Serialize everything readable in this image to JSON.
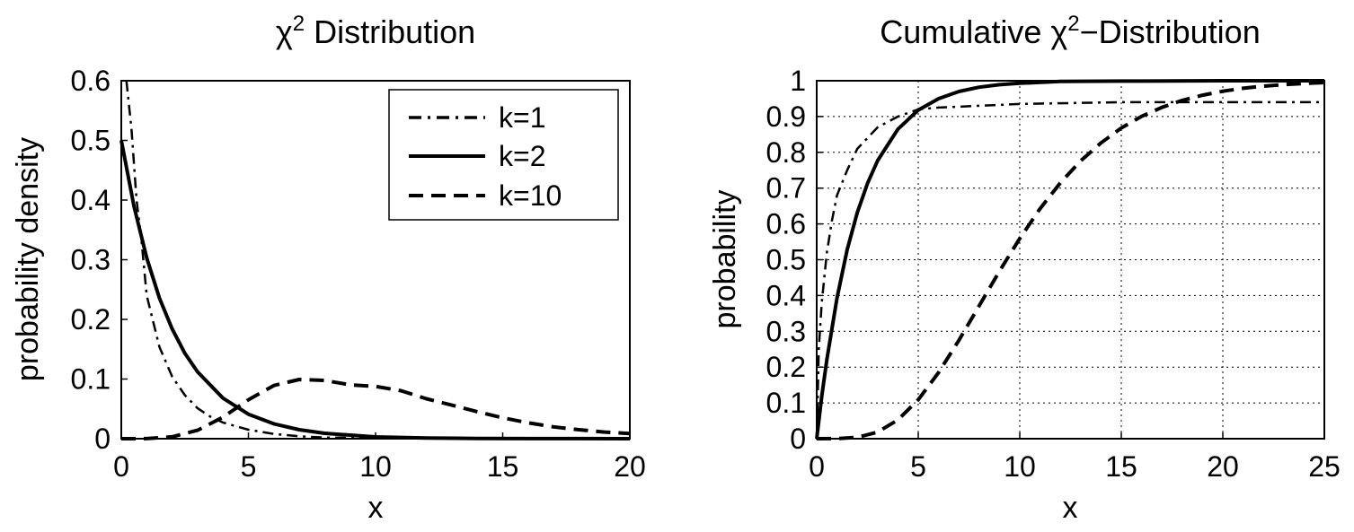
{
  "chart_data": [
    {
      "type": "line",
      "title_symbol": "χ",
      "title_sup": "2",
      "title_text": " Distribution",
      "xlabel": "x",
      "ylabel": "probability density",
      "xlim": [
        0,
        20
      ],
      "ylim": [
        0,
        0.6
      ],
      "xticks": [
        "0",
        "5",
        "10",
        "15",
        "20"
      ],
      "yticks": [
        "0",
        "0.1",
        "0.2",
        "0.3",
        "0.4",
        "0.5",
        "0.6"
      ],
      "grid": false,
      "legend_position": "top-right",
      "series": [
        {
          "name": "k=1",
          "style": "dashdot",
          "x": [
            0.2,
            0.4,
            0.6,
            0.8,
            1,
            1.5,
            2,
            2.5,
            3,
            3.5,
            4,
            5,
            6,
            7,
            8,
            10
          ],
          "y": [
            0.8,
            0.52,
            0.4,
            0.33,
            0.24,
            0.154,
            0.104,
            0.073,
            0.051,
            0.037,
            0.027,
            0.015,
            0.008,
            0.004,
            0.002,
            0.001
          ]
        },
        {
          "name": "k=2",
          "style": "solid",
          "x": [
            0,
            0.5,
            1,
            1.5,
            2,
            2.5,
            3,
            4,
            5,
            6,
            7,
            8,
            9,
            10,
            12,
            14,
            16,
            18,
            20
          ],
          "y": [
            0.5,
            0.389,
            0.303,
            0.236,
            0.184,
            0.143,
            0.112,
            0.068,
            0.041,
            0.025,
            0.015,
            0.009,
            0.006,
            0.003,
            0.001,
            0.0005,
            0.0002,
            0.0001,
            0.0
          ]
        },
        {
          "name": "k=10",
          "style": "dashed",
          "x": [
            0,
            1,
            2,
            3,
            4,
            5,
            6,
            7,
            8,
            9,
            10,
            11,
            12,
            13,
            14,
            15,
            16,
            17,
            18,
            19,
            20
          ],
          "y": [
            0,
            0.0001,
            0.0031,
            0.0141,
            0.0361,
            0.0653,
            0.0892,
            0.0992,
            0.0977,
            0.0902,
            0.0877,
            0.0804,
            0.0669,
            0.0563,
            0.0453,
            0.0351,
            0.0266,
            0.0199,
            0.0151,
            0.0112,
            0.0085
          ]
        }
      ]
    },
    {
      "type": "line",
      "title_pre": "Cumulative ",
      "title_symbol": "χ",
      "title_sup": "2",
      "title_text": "−Distribution",
      "xlabel": "x",
      "ylabel": "probability",
      "xlim": [
        0,
        25
      ],
      "ylim": [
        0,
        1
      ],
      "xticks": [
        "0",
        "5",
        "10",
        "15",
        "20",
        "25"
      ],
      "yticks": [
        "0",
        "0.1",
        "0.2",
        "0.3",
        "0.4",
        "0.5",
        "0.6",
        "0.7",
        "0.8",
        "0.9",
        "1"
      ],
      "grid": true,
      "series": [
        {
          "name": "k=1",
          "style": "dashdot",
          "x": [
            0,
            0.1,
            0.25,
            0.5,
            0.75,
            1,
            1.5,
            2,
            3,
            4,
            5,
            6,
            8,
            10,
            15,
            20,
            25
          ],
          "y": [
            0,
            0.25,
            0.38,
            0.52,
            0.61,
            0.68,
            0.75,
            0.81,
            0.87,
            0.9,
            0.92,
            0.925,
            0.93,
            0.935,
            0.94,
            0.94,
            0.94
          ]
        },
        {
          "name": "k=2",
          "style": "solid",
          "x": [
            0,
            0.25,
            0.5,
            1,
            1.5,
            2,
            2.5,
            3,
            4,
            5,
            6,
            7,
            8,
            9,
            10,
            12,
            15,
            20,
            25
          ],
          "y": [
            0,
            0.118,
            0.221,
            0.393,
            0.528,
            0.632,
            0.713,
            0.777,
            0.865,
            0.918,
            0.95,
            0.97,
            0.982,
            0.989,
            0.993,
            0.998,
            0.999,
            1.0,
            1.0
          ]
        },
        {
          "name": "k=10",
          "style": "dashed",
          "x": [
            0,
            1,
            2,
            3,
            4,
            5,
            6,
            7,
            8,
            9,
            10,
            11,
            12,
            13,
            14,
            15,
            16,
            17,
            18,
            19,
            20,
            21,
            22,
            23,
            24,
            25
          ],
          "y": [
            0,
            0.0002,
            0.0037,
            0.0186,
            0.0527,
            0.1088,
            0.1847,
            0.2746,
            0.3712,
            0.4679,
            0.5595,
            0.6425,
            0.7149,
            0.7763,
            0.8264,
            0.8679,
            0.9004,
            0.9256,
            0.945,
            0.9597,
            0.9707,
            0.9789,
            0.9849,
            0.9893,
            0.9924,
            0.9947
          ]
        }
      ]
    }
  ]
}
